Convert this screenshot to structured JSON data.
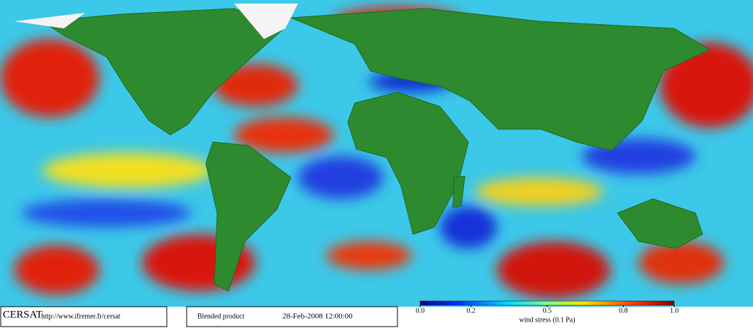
{
  "footer": {
    "logo": "CERSAT",
    "url": "http://www.ifremer.fr/cersat",
    "product": "Blended product",
    "date": "28-Feb-2008 12:00:00"
  },
  "colorbar": {
    "label": "wind stress (0.1 Pa)",
    "lim": [
      0,
      1
    ],
    "ticks": [
      {
        "value": 0,
        "label": "0.0"
      },
      0.2,
      0.5,
      0.8,
      {
        "value": 1,
        "label": "1.0"
      }
    ]
  }
}
